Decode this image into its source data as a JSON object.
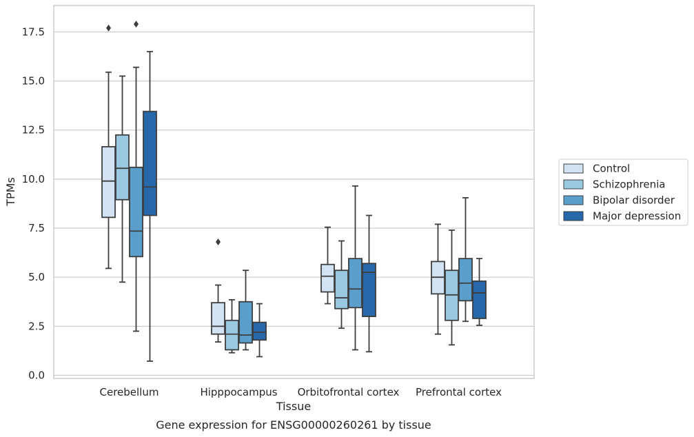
{
  "caption": "Gene expression for ENSG00000260261 by tissue",
  "chart_data": {
    "type": "boxplot",
    "xlabel": "Tissue",
    "ylabel": "TPMs",
    "ylim": [
      -0.1,
      18.8
    ],
    "yticks": [
      0.0,
      2.5,
      5.0,
      7.5,
      10.0,
      12.5,
      15.0,
      17.5
    ],
    "ytick_labels": [
      "0.0",
      "2.5",
      "5.0",
      "7.5",
      "10.0",
      "12.5",
      "15.0",
      "17.5"
    ],
    "grid": "horizontal",
    "legend_position": "right",
    "categories": [
      "Cerebellum",
      "Hipppocampus",
      "Orbitofrontal cortex",
      "Prefrontal cortex"
    ],
    "series": [
      {
        "name": "Control",
        "color": "#d2e3f3",
        "boxes": [
          {
            "whisker_low": 5.45,
            "q1": 8.05,
            "median": 9.9,
            "q3": 11.65,
            "whisker_high": 15.45,
            "outliers": [
              17.7
            ]
          },
          {
            "whisker_low": 1.7,
            "q1": 2.1,
            "median": 2.5,
            "q3": 3.7,
            "whisker_high": 4.6,
            "outliers": [
              6.8
            ]
          },
          {
            "whisker_low": 3.65,
            "q1": 4.25,
            "median": 5.05,
            "q3": 5.65,
            "whisker_high": 7.55,
            "outliers": []
          },
          {
            "whisker_low": 2.1,
            "q1": 4.15,
            "median": 5.0,
            "q3": 5.8,
            "whisker_high": 7.7,
            "outliers": []
          }
        ]
      },
      {
        "name": "Schizophrenia",
        "color": "#9ac8e0",
        "boxes": [
          {
            "whisker_low": 4.75,
            "q1": 8.95,
            "median": 10.55,
            "q3": 12.25,
            "whisker_high": 15.25,
            "outliers": []
          },
          {
            "whisker_low": 1.15,
            "q1": 1.3,
            "median": 2.1,
            "q3": 2.8,
            "whisker_high": 3.85,
            "outliers": []
          },
          {
            "whisker_low": 2.4,
            "q1": 3.4,
            "median": 3.95,
            "q3": 5.35,
            "whisker_high": 6.85,
            "outliers": []
          },
          {
            "whisker_low": 1.55,
            "q1": 2.8,
            "median": 4.1,
            "q3": 5.35,
            "whisker_high": 7.4,
            "outliers": []
          }
        ]
      },
      {
        "name": "Bipolar disorder",
        "color": "#5a9ecb",
        "boxes": [
          {
            "whisker_low": 2.25,
            "q1": 6.05,
            "median": 7.35,
            "q3": 10.6,
            "whisker_high": 15.7,
            "outliers": [
              17.9
            ]
          },
          {
            "whisker_low": 1.3,
            "q1": 1.65,
            "median": 2.05,
            "q3": 3.75,
            "whisker_high": 5.35,
            "outliers": []
          },
          {
            "whisker_low": 1.3,
            "q1": 3.45,
            "median": 4.4,
            "q3": 5.95,
            "whisker_high": 9.65,
            "outliers": []
          },
          {
            "whisker_low": 2.75,
            "q1": 3.8,
            "median": 4.7,
            "q3": 5.95,
            "whisker_high": 9.05,
            "outliers": []
          }
        ]
      },
      {
        "name": "Major depression",
        "color": "#2668aa",
        "boxes": [
          {
            "whisker_low": 0.72,
            "q1": 8.15,
            "median": 9.6,
            "q3": 13.45,
            "whisker_high": 16.5,
            "outliers": []
          },
          {
            "whisker_low": 0.95,
            "q1": 1.8,
            "median": 2.2,
            "q3": 2.7,
            "whisker_high": 3.65,
            "outliers": []
          },
          {
            "whisker_low": 1.2,
            "q1": 3.0,
            "median": 5.25,
            "q3": 5.7,
            "whisker_high": 8.15,
            "outliers": []
          },
          {
            "whisker_low": 2.55,
            "q1": 2.9,
            "median": 4.2,
            "q3": 4.8,
            "whisker_high": 5.95,
            "outliers": []
          }
        ]
      }
    ]
  }
}
